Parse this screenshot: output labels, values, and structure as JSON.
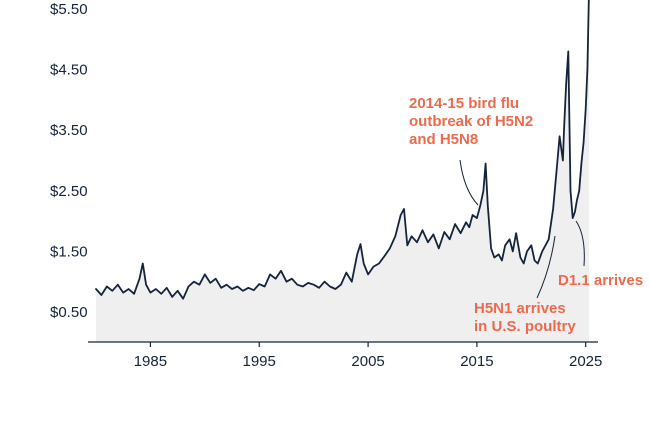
{
  "chart_data": {
    "type": "area",
    "title": "",
    "xlabel": "",
    "ylabel": "",
    "xlim": [
      1980,
      2025.3
    ],
    "ylim": [
      0,
      5.8
    ],
    "y_ticks": [
      0.5,
      1.5,
      2.5,
      3.5,
      4.5,
      5.5
    ],
    "y_tick_labels": [
      "$0.50",
      "$1.50",
      "$2.50",
      "$3.50",
      "$4.50",
      "$5.50"
    ],
    "x_ticks": [
      1985,
      1995,
      2005,
      2015,
      2025
    ],
    "x_tick_labels": [
      "1985",
      "1995",
      "2005",
      "2015",
      "2025"
    ],
    "grid": false,
    "legend": "none",
    "colors": {
      "line": "#15243b",
      "fill": "#efefef",
      "annotation": "#ee6a4c",
      "axis": "#15243b"
    },
    "series": [
      {
        "x": [
          1980.0,
          1980.5,
          1981.0,
          1981.5,
          1982.0,
          1982.5,
          1983.0,
          1983.5,
          1984.0,
          1984.3,
          1984.6,
          1985.0,
          1985.5,
          1986.0,
          1986.5,
          1987.0,
          1987.5,
          1988.0,
          1988.5,
          1989.0,
          1989.5,
          1990.0,
          1990.5,
          1991.0,
          1991.5,
          1992.0,
          1992.5,
          1993.0,
          1993.5,
          1994.0,
          1994.5,
          1995.0,
          1995.5,
          1996.0,
          1996.5,
          1997.0,
          1997.5,
          1998.0,
          1998.5,
          1999.0,
          1999.5,
          2000.0,
          2000.5,
          2001.0,
          2001.5,
          2002.0,
          2002.5,
          2003.0,
          2003.5,
          2004.0,
          2004.3,
          2004.6,
          2005.0,
          2005.5,
          2006.0,
          2006.5,
          2007.0,
          2007.5,
          2008.0,
          2008.3,
          2008.6,
          2009.0,
          2009.5,
          2010.0,
          2010.5,
          2011.0,
          2011.5,
          2012.0,
          2012.5,
          2013.0,
          2013.5,
          2014.0,
          2014.3,
          2014.6,
          2015.0,
          2015.3,
          2015.6,
          2015.8,
          2016.0,
          2016.3,
          2016.6,
          2017.0,
          2017.3,
          2017.6,
          2018.0,
          2018.3,
          2018.6,
          2019.0,
          2019.3,
          2019.6,
          2020.0,
          2020.3,
          2020.6,
          2021.0,
          2021.3,
          2021.6,
          2022.0,
          2022.3,
          2022.6,
          2022.9,
          2023.0,
          2023.2,
          2023.4,
          2023.6,
          2023.8,
          2024.0,
          2024.2,
          2024.4,
          2024.6,
          2024.8,
          2025.0,
          2025.15,
          2025.3
        ],
        "values": [
          0.88,
          0.78,
          0.92,
          0.85,
          0.95,
          0.82,
          0.88,
          0.8,
          1.05,
          1.3,
          0.95,
          0.82,
          0.88,
          0.8,
          0.9,
          0.75,
          0.85,
          0.72,
          0.92,
          1.0,
          0.95,
          1.12,
          0.98,
          1.05,
          0.9,
          0.95,
          0.88,
          0.92,
          0.85,
          0.9,
          0.86,
          0.96,
          0.92,
          1.12,
          1.05,
          1.18,
          1.0,
          1.05,
          0.95,
          0.92,
          0.98,
          0.95,
          0.9,
          1.0,
          0.92,
          0.88,
          0.95,
          1.15,
          1.0,
          1.45,
          1.62,
          1.3,
          1.12,
          1.25,
          1.3,
          1.42,
          1.55,
          1.75,
          2.1,
          2.2,
          1.6,
          1.75,
          1.65,
          1.85,
          1.65,
          1.78,
          1.55,
          1.82,
          1.7,
          1.95,
          1.8,
          1.98,
          1.9,
          2.1,
          2.05,
          2.25,
          2.5,
          2.95,
          2.25,
          1.55,
          1.4,
          1.45,
          1.35,
          1.6,
          1.7,
          1.5,
          1.8,
          1.4,
          1.3,
          1.5,
          1.6,
          1.35,
          1.3,
          1.5,
          1.6,
          1.7,
          2.2,
          2.8,
          3.4,
          3.0,
          3.5,
          4.25,
          4.8,
          2.5,
          2.05,
          2.15,
          2.35,
          2.5,
          2.95,
          3.3,
          3.85,
          4.5,
          5.8
        ]
      }
    ],
    "annotations": [
      {
        "lines": [
          "2014-15 bird flu",
          "outbreak of H5N2",
          "and H5N8"
        ],
        "target": [
          2015.0,
          2.2
        ]
      },
      {
        "lines": [
          "H5N1 arrives",
          "in U.S. poultry"
        ],
        "target": [
          2022.3,
          2.2
        ]
      },
      {
        "lines": [
          "D1.1 arrives"
        ],
        "target": [
          2024.0,
          2.0
        ]
      }
    ]
  }
}
